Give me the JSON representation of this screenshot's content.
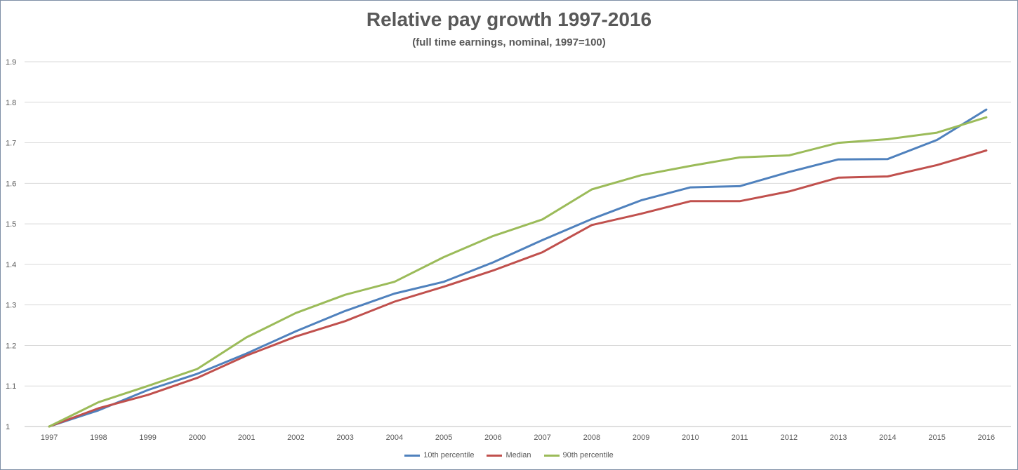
{
  "chart_data": {
    "type": "line",
    "title": "Relative pay growth 1997-2016",
    "subtitle": "(full time earnings, nominal, 1997=100)",
    "xlabel": "",
    "ylabel": "",
    "ylim": [
      1,
      1.9
    ],
    "yticks": [
      "1",
      "1.1",
      "1.2",
      "1.3",
      "1.4",
      "1.5",
      "1.6",
      "1.7",
      "1.8",
      "1.9"
    ],
    "ytick_values": [
      1,
      1.1,
      1.2,
      1.3,
      1.4,
      1.5,
      1.6,
      1.7,
      1.8,
      1.9
    ],
    "grid": true,
    "legend_position": "bottom",
    "categories": [
      "1997",
      "1998",
      "1999",
      "2000",
      "2001",
      "2002",
      "2003",
      "2004",
      "2005",
      "2006",
      "2007",
      "2008",
      "2009",
      "2010",
      "2011",
      "2012",
      "2013",
      "2014",
      "2015",
      "2016"
    ],
    "series": [
      {
        "name": "10th percentile",
        "color": "#4f81bd",
        "values": [
          1.0,
          1.04,
          1.09,
          1.13,
          1.18,
          1.235,
          1.285,
          1.328,
          1.357,
          1.405,
          1.46,
          1.512,
          1.558,
          1.59,
          1.593,
          1.628,
          1.659,
          1.66,
          1.707,
          1.782
        ]
      },
      {
        "name": "Median",
        "color": "#c0504d",
        "values": [
          1.0,
          1.045,
          1.078,
          1.12,
          1.175,
          1.222,
          1.26,
          1.308,
          1.345,
          1.385,
          1.43,
          1.497,
          1.525,
          1.556,
          1.556,
          1.58,
          1.614,
          1.617,
          1.645,
          1.681
        ]
      },
      {
        "name": "90th percentile",
        "color": "#9bbb59",
        "values": [
          1.0,
          1.06,
          1.1,
          1.142,
          1.22,
          1.28,
          1.325,
          1.357,
          1.418,
          1.47,
          1.511,
          1.585,
          1.62,
          1.643,
          1.664,
          1.669,
          1.7,
          1.709,
          1.725,
          1.763
        ]
      }
    ]
  }
}
